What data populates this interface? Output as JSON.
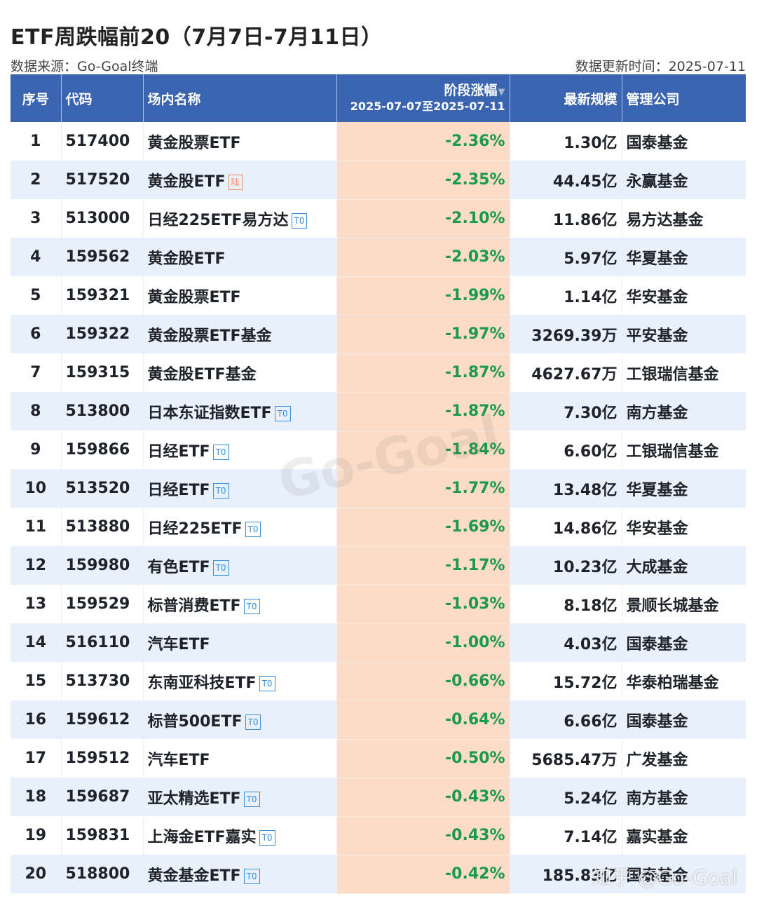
{
  "header": {
    "title": "ETF周跌幅前20（7月7日-7月11日）",
    "source": "数据来源：Go-Goal终端",
    "updated": "数据更新时间：2025-07-11"
  },
  "table": {
    "columns": {
      "idx": "序号",
      "code": "代码",
      "name": "场内名称",
      "change": "阶段涨幅",
      "change_range": "2025-07-07至2025-07-11",
      "scale": "最新规模",
      "manager": "管理公司"
    },
    "sort_icon": "▼",
    "rows": [
      {
        "idx": "1",
        "code": "517400",
        "name": "黄金股票ETF",
        "badge": "",
        "change": "-2.36%",
        "scale": "1.30亿",
        "manager": "国泰基金"
      },
      {
        "idx": "2",
        "code": "517520",
        "name": "黄金股ETF",
        "badge": "陆",
        "change": "-2.35%",
        "scale": "44.45亿",
        "manager": "永赢基金"
      },
      {
        "idx": "3",
        "code": "513000",
        "name": "日经225ETF易方达",
        "badge": "T0",
        "change": "-2.10%",
        "scale": "11.86亿",
        "manager": "易方达基金"
      },
      {
        "idx": "4",
        "code": "159562",
        "name": "黄金股ETF",
        "badge": "",
        "change": "-2.03%",
        "scale": "5.97亿",
        "manager": "华夏基金"
      },
      {
        "idx": "5",
        "code": "159321",
        "name": "黄金股票ETF",
        "badge": "",
        "change": "-1.99%",
        "scale": "1.14亿",
        "manager": "华安基金"
      },
      {
        "idx": "6",
        "code": "159322",
        "name": "黄金股票ETF基金",
        "badge": "",
        "change": "-1.97%",
        "scale": "3269.39万",
        "manager": "平安基金"
      },
      {
        "idx": "7",
        "code": "159315",
        "name": "黄金股ETF基金",
        "badge": "",
        "change": "-1.87%",
        "scale": "4627.67万",
        "manager": "工银瑞信基金"
      },
      {
        "idx": "8",
        "code": "513800",
        "name": "日本东证指数ETF",
        "badge": "T0",
        "change": "-1.87%",
        "scale": "7.30亿",
        "manager": "南方基金"
      },
      {
        "idx": "9",
        "code": "159866",
        "name": "日经ETF",
        "badge": "T0",
        "change": "-1.84%",
        "scale": "6.60亿",
        "manager": "工银瑞信基金"
      },
      {
        "idx": "10",
        "code": "513520",
        "name": "日经ETF",
        "badge": "T0",
        "change": "-1.77%",
        "scale": "13.48亿",
        "manager": "华夏基金"
      },
      {
        "idx": "11",
        "code": "513880",
        "name": "日经225ETF",
        "badge": "T0",
        "change": "-1.69%",
        "scale": "14.86亿",
        "manager": "华安基金"
      },
      {
        "idx": "12",
        "code": "159980",
        "name": "有色ETF",
        "badge": "T0",
        "change": "-1.17%",
        "scale": "10.23亿",
        "manager": "大成基金"
      },
      {
        "idx": "13",
        "code": "159529",
        "name": "标普消费ETF",
        "badge": "T0",
        "change": "-1.03%",
        "scale": "8.18亿",
        "manager": "景顺长城基金"
      },
      {
        "idx": "14",
        "code": "516110",
        "name": "汽车ETF",
        "badge": "",
        "change": "-1.00%",
        "scale": "4.03亿",
        "manager": "国泰基金"
      },
      {
        "idx": "15",
        "code": "513730",
        "name": "东南亚科技ETF",
        "badge": "T0",
        "change": "-0.66%",
        "scale": "15.72亿",
        "manager": "华泰柏瑞基金"
      },
      {
        "idx": "16",
        "code": "159612",
        "name": "标普500ETF",
        "badge": "T0",
        "change": "-0.64%",
        "scale": "6.66亿",
        "manager": "国泰基金"
      },
      {
        "idx": "17",
        "code": "159512",
        "name": "汽车ETF",
        "badge": "",
        "change": "-0.50%",
        "scale": "5685.47万",
        "manager": "广发基金"
      },
      {
        "idx": "18",
        "code": "159687",
        "name": "亚太精选ETF",
        "badge": "T0",
        "change": "-0.43%",
        "scale": "5.24亿",
        "manager": "南方基金"
      },
      {
        "idx": "19",
        "code": "159831",
        "name": "上海金ETF嘉实",
        "badge": "T0",
        "change": "-0.43%",
        "scale": "7.14亿",
        "manager": "嘉实基金"
      },
      {
        "idx": "20",
        "code": "518800",
        "name": "黄金基金ETF",
        "badge": "T0",
        "change": "-0.42%",
        "scale": "185.83亿",
        "manager": "国泰基金"
      }
    ]
  },
  "watermarks": {
    "center": "Go-Goal",
    "footer": "知乎 @Go-Goal"
  },
  "colors": {
    "header_bg": "#3a64b0",
    "change_col_bg": "#fcdcc6",
    "negative_green": "#1a9a4a",
    "stripe": "#e8f0fb",
    "t0_badge": "#3a8fd6",
    "lu_badge": "#f08c6e"
  },
  "chart_data": {
    "type": "table",
    "title": "ETF周跌幅前20（7月7日-7月11日）",
    "source": "Go-Goal终端",
    "updated": "2025-07-11",
    "columns": [
      "序号",
      "代码",
      "场内名称",
      "阶段涨幅 2025-07-07至2025-07-11",
      "最新规模",
      "管理公司"
    ],
    "rows": [
      [
        1,
        "517400",
        "黄金股票ETF",
        -2.36,
        "1.30亿",
        "国泰基金"
      ],
      [
        2,
        "517520",
        "黄金股ETF",
        -2.35,
        "44.45亿",
        "永赢基金"
      ],
      [
        3,
        "513000",
        "日经225ETF易方达",
        -2.1,
        "11.86亿",
        "易方达基金"
      ],
      [
        4,
        "159562",
        "黄金股ETF",
        -2.03,
        "5.97亿",
        "华夏基金"
      ],
      [
        5,
        "159321",
        "黄金股票ETF",
        -1.99,
        "1.14亿",
        "华安基金"
      ],
      [
        6,
        "159322",
        "黄金股票ETF基金",
        -1.97,
        "3269.39万",
        "平安基金"
      ],
      [
        7,
        "159315",
        "黄金股ETF基金",
        -1.87,
        "4627.67万",
        "工银瑞信基金"
      ],
      [
        8,
        "513800",
        "日本东证指数ETF",
        -1.87,
        "7.30亿",
        "南方基金"
      ],
      [
        9,
        "159866",
        "日经ETF",
        -1.84,
        "6.60亿",
        "工银瑞信基金"
      ],
      [
        10,
        "513520",
        "日经ETF",
        -1.77,
        "13.48亿",
        "华夏基金"
      ],
      [
        11,
        "513880",
        "日经225ETF",
        -1.69,
        "14.86亿",
        "华安基金"
      ],
      [
        12,
        "159980",
        "有色ETF",
        -1.17,
        "10.23亿",
        "大成基金"
      ],
      [
        13,
        "159529",
        "标普消费ETF",
        -1.03,
        "8.18亿",
        "景顺长城基金"
      ],
      [
        14,
        "516110",
        "汽车ETF",
        -1.0,
        "4.03亿",
        "国泰基金"
      ],
      [
        15,
        "513730",
        "东南亚科技ETF",
        -0.66,
        "15.72亿",
        "华泰柏瑞基金"
      ],
      [
        16,
        "159612",
        "标普500ETF",
        -0.64,
        "6.66亿",
        "国泰基金"
      ],
      [
        17,
        "159512",
        "汽车ETF",
        -0.5,
        "5685.47万",
        "广发基金"
      ],
      [
        18,
        "159687",
        "亚太精选ETF",
        -0.43,
        "5.24亿",
        "南方基金"
      ],
      [
        19,
        "159831",
        "上海金ETF嘉实",
        -0.43,
        "7.14亿",
        "嘉实基金"
      ],
      [
        20,
        "518800",
        "黄金基金ETF",
        -0.42,
        "185.83亿",
        "国泰基金"
      ]
    ]
  }
}
